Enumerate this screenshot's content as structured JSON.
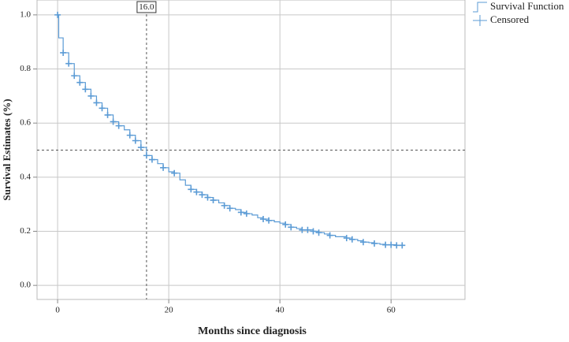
{
  "chart_data": {
    "type": "step",
    "xlabel": "Months since diagnosis",
    "ylabel": "Survival Estimates (%)",
    "series": [
      {
        "name": "Survival Function",
        "color": "#5b9bd5",
        "x": [
          0,
          0.2,
          1,
          2,
          3,
          4,
          5,
          6,
          7,
          8,
          9,
          10,
          11,
          12,
          13,
          14,
          15,
          16,
          17,
          18,
          19,
          20,
          21,
          22,
          23,
          24,
          25,
          26,
          27,
          28,
          29,
          30,
          31,
          32,
          33,
          34,
          35,
          36,
          37,
          38,
          39,
          40,
          41,
          42,
          43,
          44,
          45,
          46,
          47,
          48,
          49,
          50,
          51,
          52,
          53,
          54,
          55,
          56,
          57,
          58,
          59,
          60,
          61,
          62
        ],
        "values": [
          1.0,
          0.915,
          0.86,
          0.82,
          0.775,
          0.75,
          0.725,
          0.7,
          0.675,
          0.655,
          0.63,
          0.605,
          0.59,
          0.575,
          0.555,
          0.535,
          0.51,
          0.48,
          0.465,
          0.45,
          0.435,
          0.42,
          0.415,
          0.39,
          0.37,
          0.355,
          0.345,
          0.335,
          0.325,
          0.315,
          0.305,
          0.295,
          0.285,
          0.28,
          0.27,
          0.265,
          0.26,
          0.25,
          0.245,
          0.24,
          0.235,
          0.23,
          0.225,
          0.215,
          0.21,
          0.205,
          0.205,
          0.2,
          0.195,
          0.19,
          0.185,
          0.18,
          0.18,
          0.175,
          0.17,
          0.165,
          0.16,
          0.158,
          0.155,
          0.152,
          0.15,
          0.15,
          0.148,
          0.148
        ]
      },
      {
        "name": "Censored",
        "color": "#5b9bd5",
        "marker": "plus",
        "x": [
          0,
          1,
          2,
          3,
          4,
          5,
          6,
          7,
          8,
          9,
          10,
          11,
          13,
          14,
          15,
          16,
          17,
          19,
          21,
          24,
          25,
          26,
          27,
          28,
          30,
          31,
          33,
          34,
          37,
          38,
          41,
          42,
          44,
          45,
          46,
          47,
          49,
          52,
          53,
          55,
          57,
          59,
          60,
          61,
          62
        ],
        "values": [
          1.0,
          0.86,
          0.82,
          0.775,
          0.75,
          0.725,
          0.7,
          0.675,
          0.655,
          0.63,
          0.605,
          0.59,
          0.555,
          0.535,
          0.51,
          0.48,
          0.465,
          0.435,
          0.415,
          0.355,
          0.345,
          0.335,
          0.325,
          0.315,
          0.295,
          0.285,
          0.27,
          0.265,
          0.245,
          0.24,
          0.225,
          0.215,
          0.205,
          0.205,
          0.2,
          0.195,
          0.185,
          0.175,
          0.17,
          0.16,
          0.155,
          0.15,
          0.15,
          0.148,
          0.148
        ]
      }
    ],
    "xlim": [
      -3.7,
      73.3
    ],
    "ylim": [
      -0.052,
      1.055
    ],
    "xticks": [
      0,
      20,
      40,
      60
    ],
    "yticks": [
      {
        "value": 0,
        "label": "0.0"
      },
      0.2,
      0.4,
      0.6,
      0.8,
      {
        "value": 1,
        "label": "1.0"
      }
    ],
    "grid": true,
    "legend": "outside-top-right",
    "reference_lines": {
      "x": {
        "value": 16,
        "label": "16.0"
      },
      "y": 0.5
    }
  }
}
